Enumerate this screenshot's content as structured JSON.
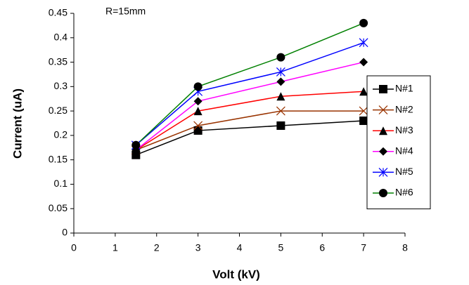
{
  "chart_data": {
    "type": "line",
    "annotation": "R=15mm",
    "x_label": "Volt (kV)",
    "y_label": "Current (uA)",
    "x": [
      1.5,
      3,
      5,
      7
    ],
    "series": [
      {
        "name": "N#1",
        "color": "#000000",
        "marker": "square",
        "marker_color": "#000000",
        "values": [
          0.16,
          0.21,
          0.22,
          0.23
        ]
      },
      {
        "name": "N#2",
        "color": "#993300",
        "marker": "x",
        "marker_color": "#993300",
        "values": [
          0.17,
          0.22,
          0.25,
          0.25
        ]
      },
      {
        "name": "N#3",
        "color": "#ff0000",
        "marker": "triangle",
        "marker_color": "#000000",
        "values": [
          0.17,
          0.25,
          0.28,
          0.29
        ]
      },
      {
        "name": "N#4",
        "color": "#ff00ff",
        "marker": "diamond",
        "marker_color": "#000000",
        "values": [
          0.17,
          0.27,
          0.31,
          0.35
        ]
      },
      {
        "name": "N#5",
        "color": "#0000ff",
        "marker": "star",
        "marker_color": "#0000ff",
        "values": [
          0.18,
          0.29,
          0.33,
          0.39
        ]
      },
      {
        "name": "N#6",
        "color": "#008000",
        "marker": "circle",
        "marker_color": "#000000",
        "values": [
          0.18,
          0.3,
          0.36,
          0.43
        ]
      }
    ],
    "xlim": [
      0,
      8
    ],
    "xticks": [
      0,
      1,
      2,
      3,
      4,
      5,
      6,
      7,
      8
    ],
    "ylim": [
      0,
      0.45
    ],
    "yticks": [
      0,
      0.05,
      0.1,
      0.15,
      0.2,
      0.25,
      0.3,
      0.35,
      0.4,
      0.45
    ],
    "grid": false,
    "legend": "right"
  }
}
